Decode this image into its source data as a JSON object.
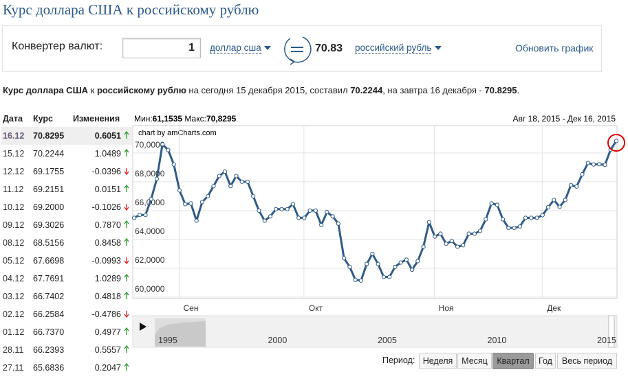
{
  "title": "Курс доллара США к российскому рублю",
  "converter": {
    "label": "Конвертер валют:",
    "amount": "1",
    "from": "доллар сша",
    "result": "70.83",
    "to": "российский рубль",
    "refresh": "Обновить график"
  },
  "summary": [
    "Курс доллара США",
    "к",
    "российскому рублю",
    "на сегодня 15 декабря 2015, составил",
    "70.2244",
    ", на завтра 16 декабря -",
    "70.8295",
    "."
  ],
  "table": {
    "headers": [
      "Дата",
      "Курс",
      "Изменения"
    ],
    "rows": [
      [
        "16.12",
        "70.8295",
        "0.6051"
      ],
      [
        "15.12",
        "70.2244",
        "1.0489"
      ],
      [
        "12.12",
        "69.1755",
        "-0.0396"
      ],
      [
        "11.12",
        "69.2151",
        "0.0151"
      ],
      [
        "10.12",
        "69.2000",
        "-0.1026"
      ],
      [
        "09.12",
        "69.3026",
        "0.7870"
      ],
      [
        "08.12",
        "68.5156",
        "0.8458"
      ],
      [
        "05.12",
        "67.6698",
        "-0.0993"
      ],
      [
        "04.12",
        "67.7691",
        "1.0289"
      ],
      [
        "03.12",
        "66.7402",
        "0.4818"
      ],
      [
        "02.12",
        "66.2584",
        "-0.4786"
      ],
      [
        "01.12",
        "66.7370",
        "0.4977"
      ],
      [
        "28.11",
        "66.2393",
        "0.5557"
      ],
      [
        "27.11",
        "65.6836",
        "0.2047"
      ]
    ]
  },
  "chart_data": {
    "type": "line",
    "min_label": "Мин:",
    "min": "61,1535",
    "max_label": "Макс:",
    "max": "70,8295",
    "range": "Авг 18, 2015 - Дек 16, 2015",
    "credit": "chart by amCharts.com",
    "categories": [
      null,
      null,
      null,
      null,
      null,
      null,
      null,
      null,
      null,
      null,
      "Сен",
      null,
      null,
      null,
      null,
      null,
      null,
      null,
      null,
      null,
      null,
      null,
      null,
      null,
      null,
      null,
      null,
      null,
      null,
      null,
      null,
      null,
      "Окт",
      null,
      null,
      null,
      null,
      null,
      null,
      null,
      null,
      null,
      null,
      null,
      null,
      null,
      null,
      null,
      null,
      null,
      null,
      null,
      null,
      null,
      null,
      "Ноя",
      null,
      null,
      null,
      null,
      null,
      null,
      null,
      null,
      null,
      null,
      null,
      null,
      null,
      null,
      null,
      null,
      null,
      null,
      "Дек",
      null,
      null,
      null,
      null,
      null,
      null,
      null,
      null,
      null,
      null,
      null
    ],
    "series": [
      {
        "color": "#2e5b87",
        "values": [
          65.5,
          65.7,
          65.7,
          66.8,
          68.2,
          70.6,
          70.2,
          69.2,
          67.4,
          66.45,
          66.5,
          65.3,
          66.6,
          67.0,
          67.7,
          68.4,
          68.7,
          67.7,
          68.4,
          68.0,
          68.0,
          67.0,
          66.0,
          65.3,
          65.6,
          66.1,
          66.1,
          66.1,
          66.45,
          65.5,
          65.5,
          66.0,
          66.0,
          65.0,
          65.9,
          65.6,
          65.1,
          62.7,
          62.1,
          61.2,
          61.15,
          62.3,
          63.0,
          62.3,
          61.4,
          61.4,
          62.1,
          62.4,
          62.6,
          61.9,
          62.5,
          63.5,
          65.2,
          64.2,
          64.4,
          63.7,
          63.9,
          63.5,
          63.6,
          64.4,
          64.4,
          64.6,
          65.4,
          66.5,
          66.4,
          65.4,
          64.8,
          64.8,
          64.9,
          65.5,
          65.5,
          65.5,
          65.6836,
          66.2393,
          66.737,
          66.2584,
          66.7402,
          67.7691,
          67.6698,
          68.5156,
          69.3026,
          69.2,
          69.2151,
          69.1755,
          70.2244,
          70.8295
        ]
      }
    ],
    "ylim": [
      60,
      71.8
    ],
    "yticks": [
      {
        "value": 60,
        "label": "60,0000"
      },
      {
        "value": 62,
        "label": "62,0000"
      },
      {
        "value": 64,
        "label": "64,0000"
      },
      {
        "value": 66,
        "label": "66,0000"
      },
      {
        "value": 68,
        "label": "68,0000"
      },
      {
        "value": 70,
        "label": "70,0000"
      }
    ],
    "grid": true,
    "navigator": {
      "labels": [
        1995,
        2000,
        2005,
        2010,
        2015
      ]
    },
    "period": {
      "label": "Период:",
      "buttons": [
        "Неделя",
        "Месяц",
        "Квартал",
        "Год",
        "Весь период"
      ],
      "active": 2
    }
  }
}
